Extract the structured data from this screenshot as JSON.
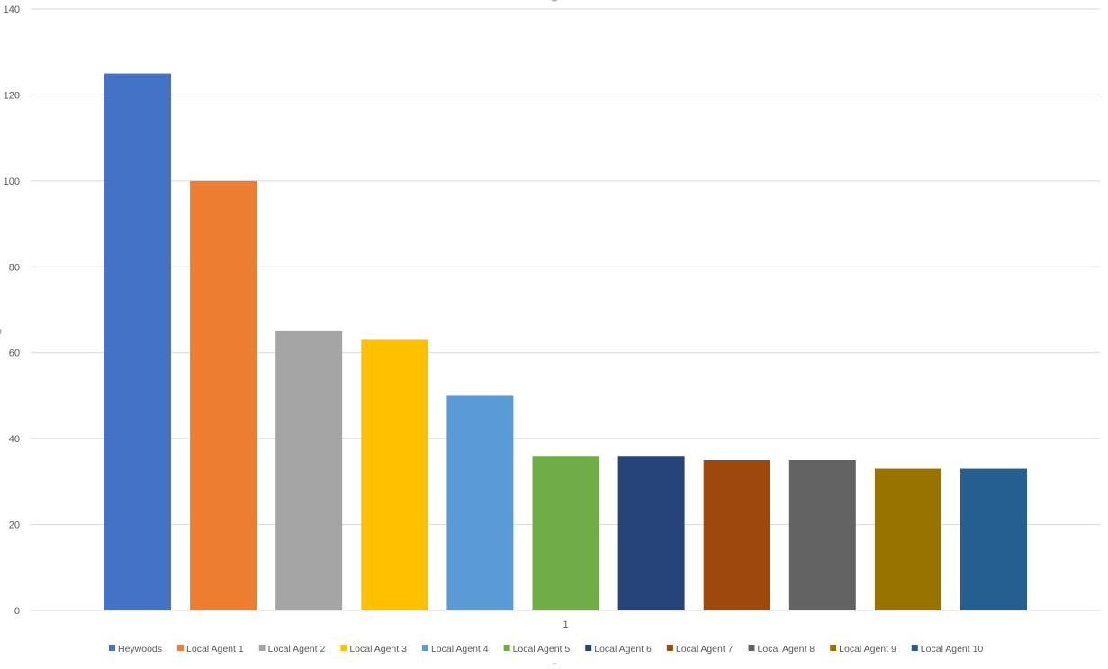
{
  "chart_data": {
    "type": "bar",
    "categories": [
      "1"
    ],
    "series": [
      {
        "name": "Heywoods",
        "values": [
          125
        ],
        "color": "#4472C4"
      },
      {
        "name": "Local Agent 1",
        "values": [
          100
        ],
        "color": "#ED7D31"
      },
      {
        "name": "Local Agent 2",
        "values": [
          65
        ],
        "color": "#A5A5A5"
      },
      {
        "name": "Local Agent 3",
        "values": [
          63
        ],
        "color": "#FFC000"
      },
      {
        "name": "Local Agent 4",
        "values": [
          50
        ],
        "color": "#5B9BD5"
      },
      {
        "name": "Local Agent 5",
        "values": [
          36
        ],
        "color": "#70AD47"
      },
      {
        "name": "Local Agent 6",
        "values": [
          36
        ],
        "color": "#264478"
      },
      {
        "name": "Local Agent 7",
        "values": [
          35
        ],
        "color": "#9E480E"
      },
      {
        "name": "Local Agent 8",
        "values": [
          35
        ],
        "color": "#636363"
      },
      {
        "name": "Local Agent 9",
        "values": [
          33
        ],
        "color": "#997300"
      },
      {
        "name": "Local Agent 10",
        "values": [
          33
        ],
        "color": "#255E91"
      }
    ],
    "ylim": [
      0,
      140
    ],
    "yticks": [
      "0",
      "20",
      "40",
      "60",
      "80",
      "100",
      "120",
      "140"
    ],
    "grid": true,
    "legend": "bottom"
  }
}
